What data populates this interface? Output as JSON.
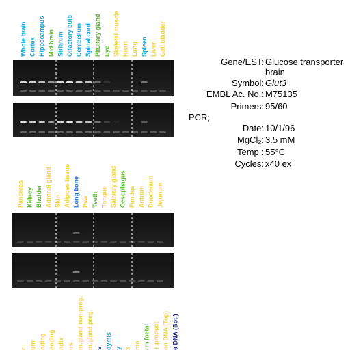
{
  "panels": [
    {
      "lanes": [
        {
          "name": "Whole brain",
          "color": "#1aa7d8"
        },
        {
          "name": "Cortex",
          "color": "#1aa7d8"
        },
        {
          "name": "Hippocampus",
          "color": "#1aa7d8"
        },
        {
          "name": "Mid brain",
          "color": "#5cb82e"
        },
        {
          "name": "Striatum",
          "color": "#1aa7d8"
        },
        {
          "name": "Olfactory bulb",
          "color": "#1aa7d8"
        },
        {
          "name": "Cerebellum",
          "color": "#1aa7d8"
        },
        {
          "name": "Spinal cord",
          "color": "#1aa7d8"
        },
        {
          "name": "Pituitary gland",
          "color": "#5cb82e"
        },
        {
          "name": "Eye",
          "color": "#5cb82e"
        },
        {
          "name": "Skeletal muscle",
          "color": "#f0d040"
        },
        {
          "name": "Heart",
          "color": "#f0d040"
        },
        {
          "name": "Lung",
          "color": "#f0d040"
        },
        {
          "name": "Spleen",
          "color": "#1aa7d8"
        },
        {
          "name": "Liver",
          "color": "#f0d040"
        },
        {
          "name": "Gall bladder",
          "color": "#f0d040"
        }
      ]
    },
    {
      "lanes": [
        {
          "name": "Pancreas",
          "color": "#f0d040"
        },
        {
          "name": "Kidney",
          "color": "#5cb82e"
        },
        {
          "name": "Bladder",
          "color": "#5cb82e"
        },
        {
          "name": "Adrenal gland",
          "color": "#f0d040"
        },
        {
          "name": "Skin",
          "color": "#f0d040"
        },
        {
          "name": "Adipose tissue",
          "color": "#f0d040"
        },
        {
          "name": "Long bone",
          "color": "#1a73c8"
        },
        {
          "name": "Paw",
          "color": "#f0d040"
        },
        {
          "name": "Teeth",
          "color": "#5cb82e"
        },
        {
          "name": "Tongue",
          "color": "#f0d040"
        },
        {
          "name": "Salivary gland",
          "color": "#f0d040"
        },
        {
          "name": "Oesophagus",
          "color": "#5cb82e"
        },
        {
          "name": "Fundus",
          "color": "#f0d040"
        },
        {
          "name": "Antrum",
          "color": "#f0d040"
        },
        {
          "name": "Duodenum",
          "color": "#f0d040"
        },
        {
          "name": "Jejunum",
          "color": "#f0d040"
        }
      ]
    },
    {
      "lanes": [
        {
          "name": "r",
          "color": "#f0d040"
        },
        {
          "name": "um",
          "color": "#f0d040"
        },
        {
          "name": "nding",
          "color": "#f0d040"
        },
        {
          "name": "ending",
          "color": "#f0d040"
        },
        {
          "name": "ndix",
          "color": "#f0d040"
        },
        {
          "name": "us",
          "color": "#f0d040"
        },
        {
          "name": "m.gland non-preg.",
          "color": "#f0d040"
        },
        {
          "name": "m.gland preg.",
          "color": "#f0d040"
        },
        {
          "name": "s",
          "color": "#1a3fb0"
        },
        {
          "name": "dymis",
          "color": "#1aa7d8"
        },
        {
          "name": "y",
          "color": "#1aa7d8"
        },
        {
          "name": "x",
          "color": "#f0d040"
        },
        {
          "name": "nta",
          "color": "#f0d040"
        },
        {
          "name": "rm foetal",
          "color": "#5cb82e"
        },
        {
          "name": "T product",
          "color": "#f0d040"
        },
        {
          "name": "on DNA (Top)",
          "color": "#f0d040"
        },
        {
          "name": "e DNA (Bot.)",
          "color": "#1a237e"
        }
      ]
    }
  ],
  "info": {
    "rows": [
      {
        "label": "Gene/EST:",
        "value": "Glucose transporter"
      },
      {
        "label": "",
        "value": "brain"
      },
      {
        "label": "Symbol:",
        "value": "Glut3"
      },
      {
        "label": "EMBL Ac. No.:",
        "value": "M75135"
      },
      {
        "label": "Primers:",
        "value": "95/60"
      }
    ],
    "pcr": "PCR;",
    "pcr_rows": [
      {
        "label": "Date:",
        "value": "10/1/96"
      },
      {
        "label": "MgCl₂:",
        "value": "3.5 mM"
      },
      {
        "label": "Temp :",
        "value": "55°C"
      },
      {
        "label": "Cycles:",
        "value": "x40 ex"
      }
    ]
  }
}
